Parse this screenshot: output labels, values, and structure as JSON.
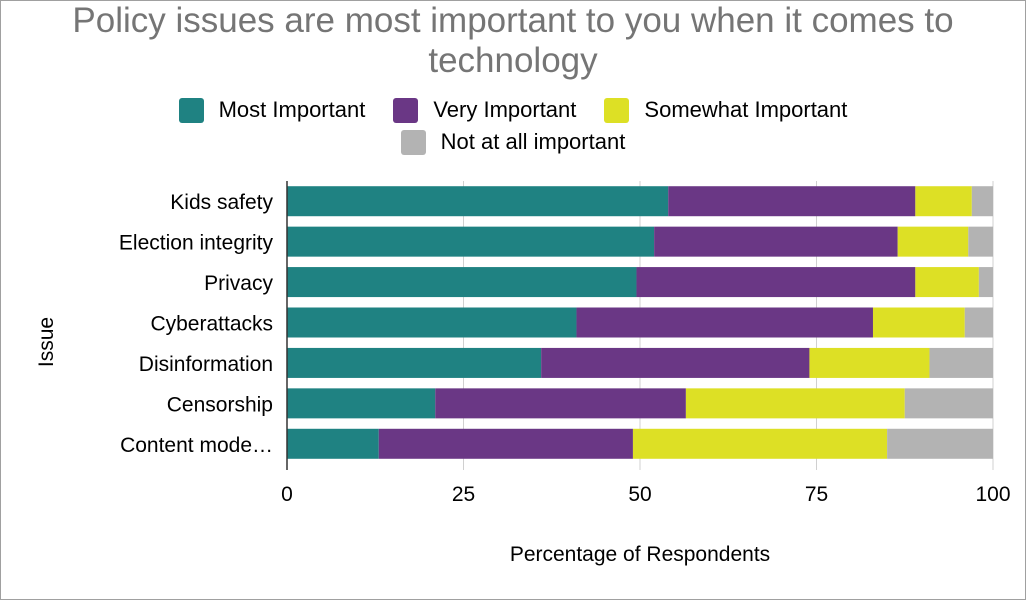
{
  "chart_data": {
    "type": "bar",
    "orientation": "horizontal",
    "stacked": true,
    "title": "Policy issues are most important to you when it comes to technology",
    "xlabel": "Percentage of Respondents",
    "ylabel": "Issue",
    "xlim": [
      0,
      100
    ],
    "xticks": [
      0,
      25,
      50,
      75,
      100
    ],
    "grid": "vertical",
    "legend_position": "top",
    "categories": [
      "Kids safety",
      "Election integrity",
      "Privacy",
      "Cyberattacks",
      "Disinformation",
      "Censorship",
      "Content mode…"
    ],
    "series": [
      {
        "name": "Most Important",
        "color": "#1f8282",
        "values": [
          54,
          52,
          49.5,
          41,
          36,
          21,
          13
        ]
      },
      {
        "name": "Very Important",
        "color": "#6a3785",
        "values": [
          35,
          34.5,
          39.5,
          42,
          38,
          35.5,
          36
        ]
      },
      {
        "name": "Somewhat Important",
        "color": "#dde025",
        "values": [
          8,
          10,
          9,
          13,
          17,
          31,
          36
        ]
      },
      {
        "name": "Not at all important",
        "color": "#b3b3b3",
        "values": [
          3,
          3.5,
          2,
          4,
          9,
          12.5,
          15
        ]
      }
    ]
  }
}
